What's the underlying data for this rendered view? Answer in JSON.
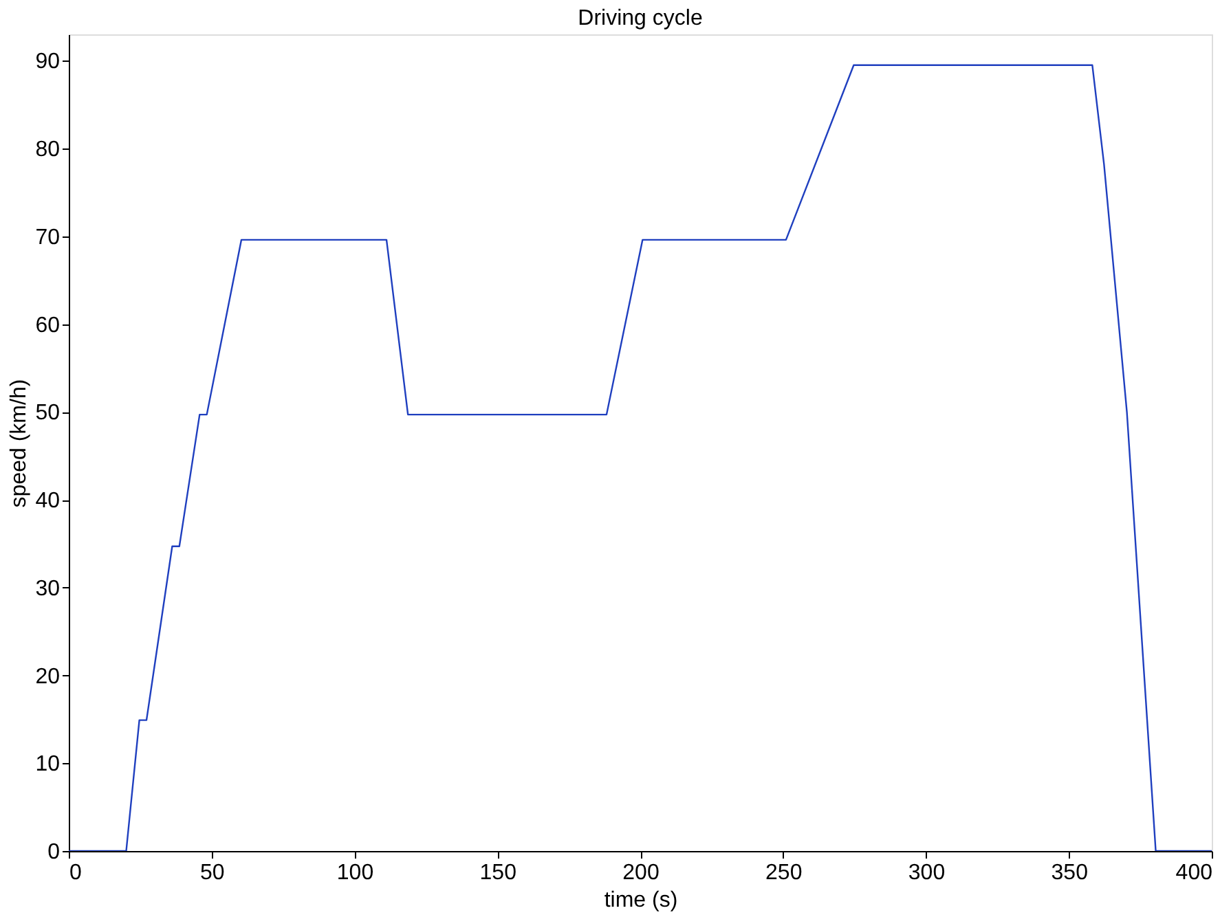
{
  "chart_data": {
    "type": "line",
    "title": "Driving cycle",
    "xlabel": "time (s)",
    "ylabel": "speed (km/h)",
    "x": [
      0,
      20.1,
      24.7,
      27.2,
      36.2,
      38.7,
      45.8,
      48.3,
      60.4,
      111.2,
      118.7,
      188.2,
      200.8,
      251,
      274.7,
      358.2,
      362.3,
      370.3,
      380.4,
      400
    ],
    "series": [
      {
        "color": "#1f3fbf",
        "values": [
          0,
          0,
          14.9,
          14.9,
          34.7,
          34.7,
          49.7,
          49.7,
          69.6,
          69.6,
          49.7,
          49.7,
          69.6,
          69.6,
          89.5,
          89.5,
          78.2,
          50,
          0,
          0
        ]
      }
    ],
    "xlim": [
      0,
      400
    ],
    "xticks": [
      0,
      50,
      100,
      150,
      200,
      250,
      300,
      350,
      400
    ],
    "ylim": [
      0,
      93
    ],
    "yticks": [
      0,
      10,
      20,
      30,
      40,
      50,
      60,
      70,
      80,
      90
    ],
    "grid": false,
    "marker": "none",
    "line_style": "solid"
  }
}
